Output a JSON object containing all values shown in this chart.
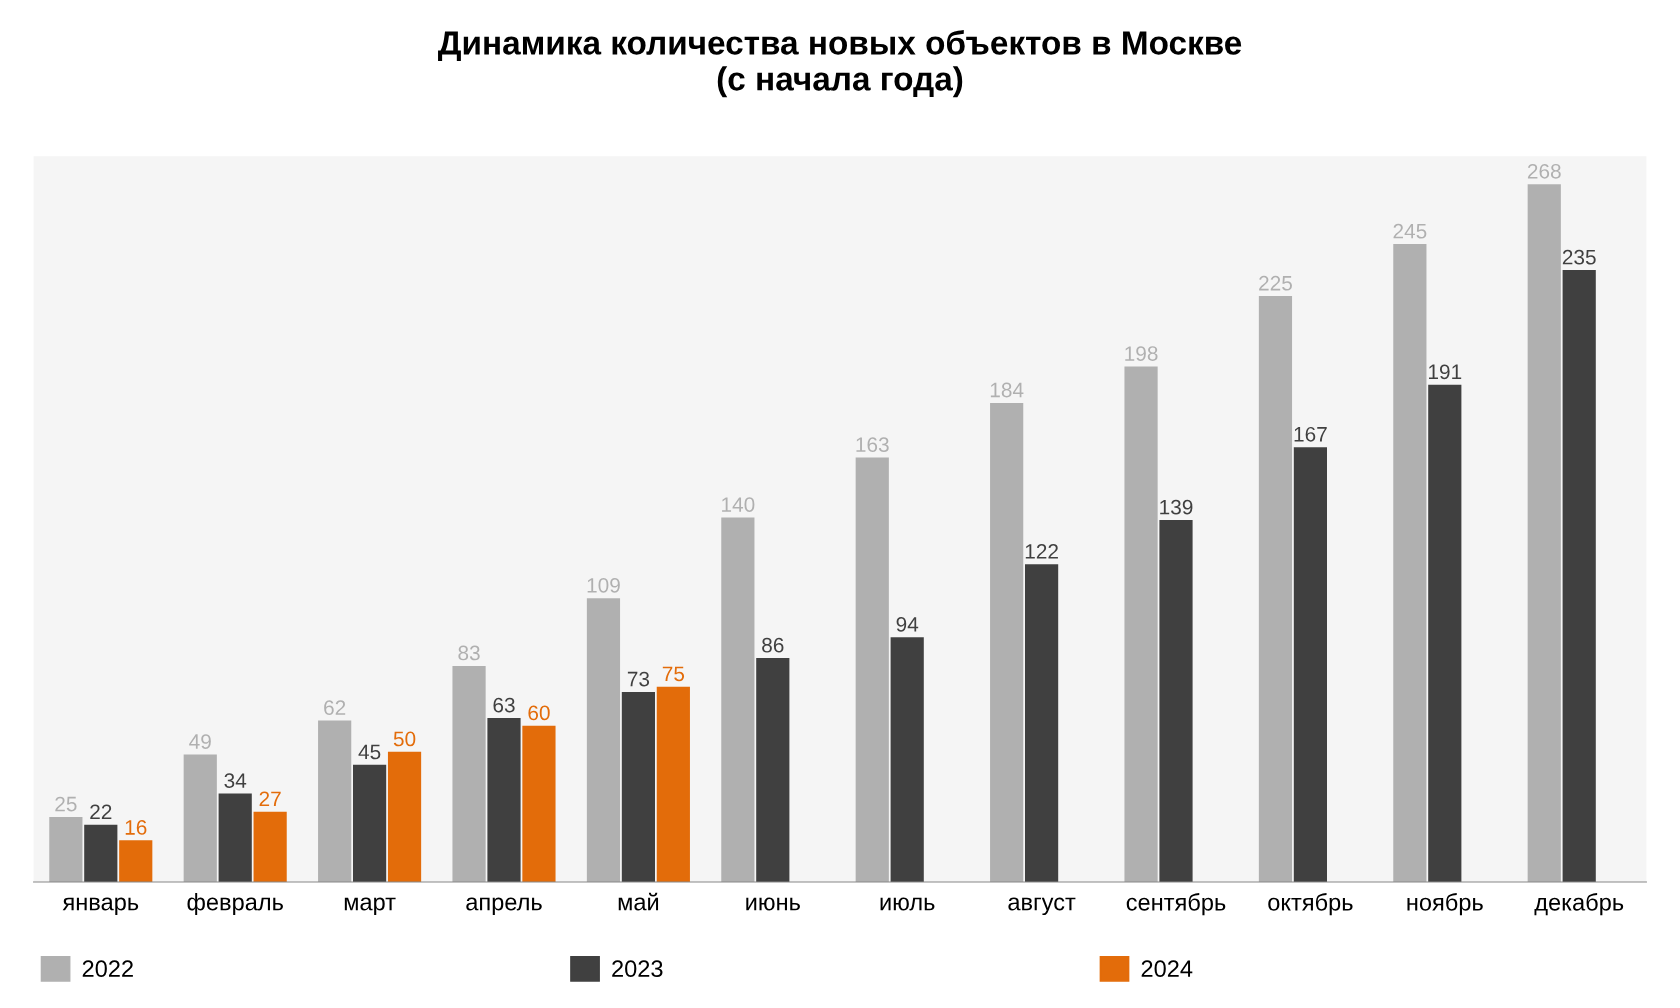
{
  "chart_data": {
    "type": "bar",
    "title": "Динамика количества новых объектов в Москве\n(с начала года)",
    "categories": [
      "январь",
      "февраль",
      "март",
      "апрель",
      "май",
      "июнь",
      "июль",
      "август",
      "сентябрь",
      "октябрь",
      "ноябрь",
      "декабрь"
    ],
    "series": [
      {
        "name": "2022",
        "color": "#b0b0b0",
        "values": [
          25,
          49,
          62,
          83,
          109,
          140,
          163,
          184,
          198,
          225,
          245,
          268
        ]
      },
      {
        "name": "2023",
        "color": "#404040",
        "values": [
          22,
          34,
          45,
          63,
          73,
          86,
          94,
          122,
          139,
          167,
          191,
          235
        ]
      },
      {
        "name": "2024",
        "color": "#e36c0a",
        "values": [
          16,
          27,
          50,
          60,
          75,
          null,
          null,
          null,
          null,
          null,
          null,
          null
        ]
      }
    ],
    "data_labels": true,
    "legend": "bottom",
    "grid": false,
    "tick_labels": "x"
  }
}
